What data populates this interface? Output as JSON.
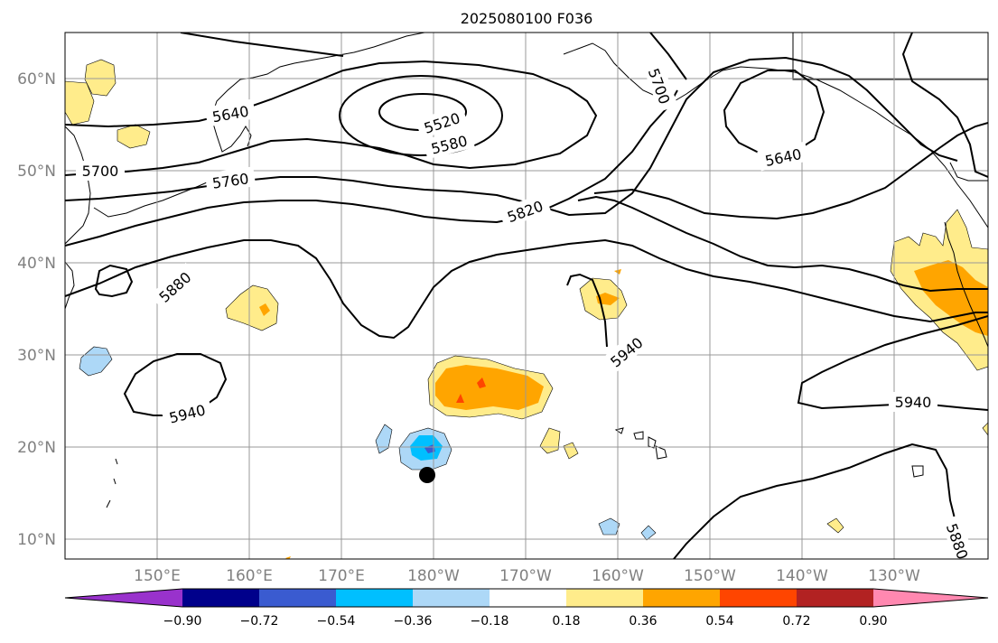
{
  "title": "2025080100 F036",
  "map": {
    "lat_ticks": [
      {
        "label": "60°N",
        "value": 60
      },
      {
        "label": "50°N",
        "value": 50
      },
      {
        "label": "40°N",
        "value": 40
      },
      {
        "label": "30°N",
        "value": 30
      },
      {
        "label": "20°N",
        "value": 20
      },
      {
        "label": "10°N",
        "value": 10
      }
    ],
    "lon_ticks": [
      {
        "label": "150°E",
        "value": 150
      },
      {
        "label": "160°E",
        "value": 160
      },
      {
        "label": "170°E",
        "value": 170
      },
      {
        "label": "180°W",
        "value": 180
      },
      {
        "label": "170°W",
        "value": 190
      },
      {
        "label": "160°W",
        "value": 200
      },
      {
        "label": "150°W",
        "value": 210
      },
      {
        "label": "140°W",
        "value": 220
      },
      {
        "label": "130°W",
        "value": 230
      }
    ],
    "contour_labels": [
      "5520",
      "5580",
      "5640",
      "5640",
      "5700",
      "5760",
      "5700",
      "5820",
      "5880",
      "5940",
      "5940",
      "5940",
      "5880"
    ],
    "marker": "storm-center-dot"
  },
  "colorbar": {
    "colors": [
      "#9932cc",
      "#00008b",
      "#3a5bd0",
      "#00bfff",
      "#add8f7",
      "#ffffff",
      "#ffec8b",
      "#ffa500",
      "#ff4500",
      "#b22222",
      "#ff88b0"
    ],
    "tick_labels": [
      "−0.90",
      "−0.72",
      "−0.54",
      "−0.36",
      "−0.18",
      "0.18",
      "0.36",
      "0.54",
      "0.72",
      "0.90"
    ]
  }
}
